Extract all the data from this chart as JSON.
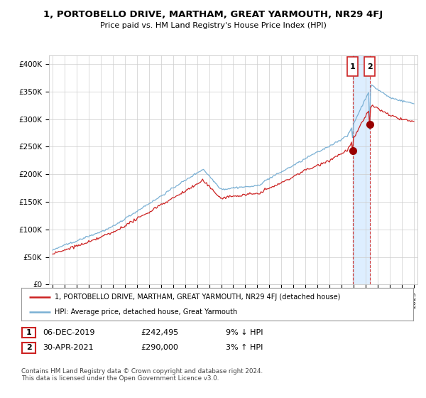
{
  "title": "1, PORTOBELLO DRIVE, MARTHAM, GREAT YARMOUTH, NR29 4FJ",
  "subtitle": "Price paid vs. HM Land Registry's House Price Index (HPI)",
  "ylabel_ticks": [
    "£0",
    "£50K",
    "£100K",
    "£150K",
    "£200K",
    "£250K",
    "£300K",
    "£350K",
    "£400K"
  ],
  "ytick_values": [
    0,
    50000,
    100000,
    150000,
    200000,
    250000,
    300000,
    350000,
    400000
  ],
  "ylim": [
    0,
    415000
  ],
  "hpi_color": "#7ab0d4",
  "price_color": "#cc2222",
  "annotation_color": "#cc2222",
  "dashed_color": "#cc2222",
  "shade_color": "#ddeeff",
  "sale1_t": 2019.92,
  "sale2_t": 2021.33,
  "sale1_price": 242495,
  "sale2_price": 290000,
  "legend_label_price": "1, PORTOBELLO DRIVE, MARTHAM, GREAT YARMOUTH, NR29 4FJ (detached house)",
  "legend_label_hpi": "HPI: Average price, detached house, Great Yarmouth",
  "table_row1": [
    "1",
    "06-DEC-2019",
    "£242,495",
    "9% ↓ HPI"
  ],
  "table_row2": [
    "2",
    "30-APR-2021",
    "£290,000",
    "3% ↑ HPI"
  ],
  "footer": "Contains HM Land Registry data © Crown copyright and database right 2024.\nThis data is licensed under the Open Government Licence v3.0.",
  "background_color": "#ffffff",
  "xlim_left": 1994.7,
  "xlim_right": 2025.3
}
